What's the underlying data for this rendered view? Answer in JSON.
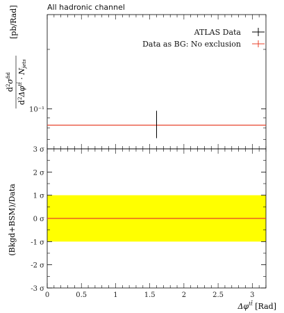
{
  "title": "All hadronic channel",
  "colors": {
    "data": "#000000",
    "prediction": "#e8402a",
    "band": "#ffff00",
    "frame": "#000000"
  },
  "chart_data": [
    {
      "type": "line",
      "panel": "main",
      "ylabel": "d²σ^fid / d²Δφ^{tt̄} · N_jets [pb/Rad]",
      "ylabel_parts": {
        "numerator": "d",
        "num_sup": "2",
        "sigma": "σ",
        "sigma_sup": "fid",
        "denominator": "d",
        "den_sup": "2",
        "dphi": "Δφ",
        "dphi_sup": "tt̄",
        "dot_n": " · N",
        "n_sub": "jets",
        "units": "[pb/Rad]"
      },
      "scale": "log",
      "xlim": [
        0,
        3.2
      ],
      "ylim": [
        0.0627,
        0.3
      ],
      "ytick_label": "10⁻¹",
      "ytick_value": 0.1,
      "legend": {
        "placement": "top-right"
      },
      "series": [
        {
          "name": "ATLAS Data",
          "kind": "errorbar",
          "x": [
            1.6
          ],
          "y": [
            0.0826
          ],
          "yerr_low": [
            0.0116
          ],
          "yerr_high": [
            0.0152
          ]
        },
        {
          "name": "Data as BG: No exclusion",
          "kind": "hline",
          "x": [
            0,
            3.2
          ],
          "y": [
            0.0826,
            0.0826
          ]
        }
      ]
    },
    {
      "type": "line",
      "panel": "ratio",
      "ylabel": "(Bkgd+BSM)/Data",
      "xlabel": "Δφ^{tt̄} [Rad]",
      "xlabel_parts": {
        "dphi": "Δφ",
        "sup": "tt̄",
        "units": " [Rad]"
      },
      "xlim": [
        0,
        3.2
      ],
      "ylim": [
        -3,
        3
      ],
      "xticks": [
        {
          "value": 0,
          "label": "0"
        },
        {
          "value": 0.5,
          "label": "0.5"
        },
        {
          "value": 1,
          "label": "1"
        },
        {
          "value": 1.5,
          "label": "1.5"
        },
        {
          "value": 2,
          "label": "2"
        },
        {
          "value": 2.5,
          "label": "2.5"
        },
        {
          "value": 3,
          "label": "3"
        }
      ],
      "yticks": [
        {
          "value": 3,
          "label": "3 σ"
        },
        {
          "value": 2,
          "label": "2 σ"
        },
        {
          "value": 1,
          "label": "1 σ"
        },
        {
          "value": 0,
          "label": "0 σ"
        },
        {
          "value": -1,
          "label": "-1 σ"
        },
        {
          "value": -2,
          "label": "-2 σ"
        },
        {
          "value": -3,
          "label": "-3 σ"
        }
      ],
      "band": {
        "low": -1,
        "high": 1
      },
      "series": [
        {
          "name": "Data as BG: No exclusion",
          "kind": "hline",
          "x": [
            0,
            3.2
          ],
          "y": [
            0,
            0
          ]
        }
      ]
    }
  ]
}
